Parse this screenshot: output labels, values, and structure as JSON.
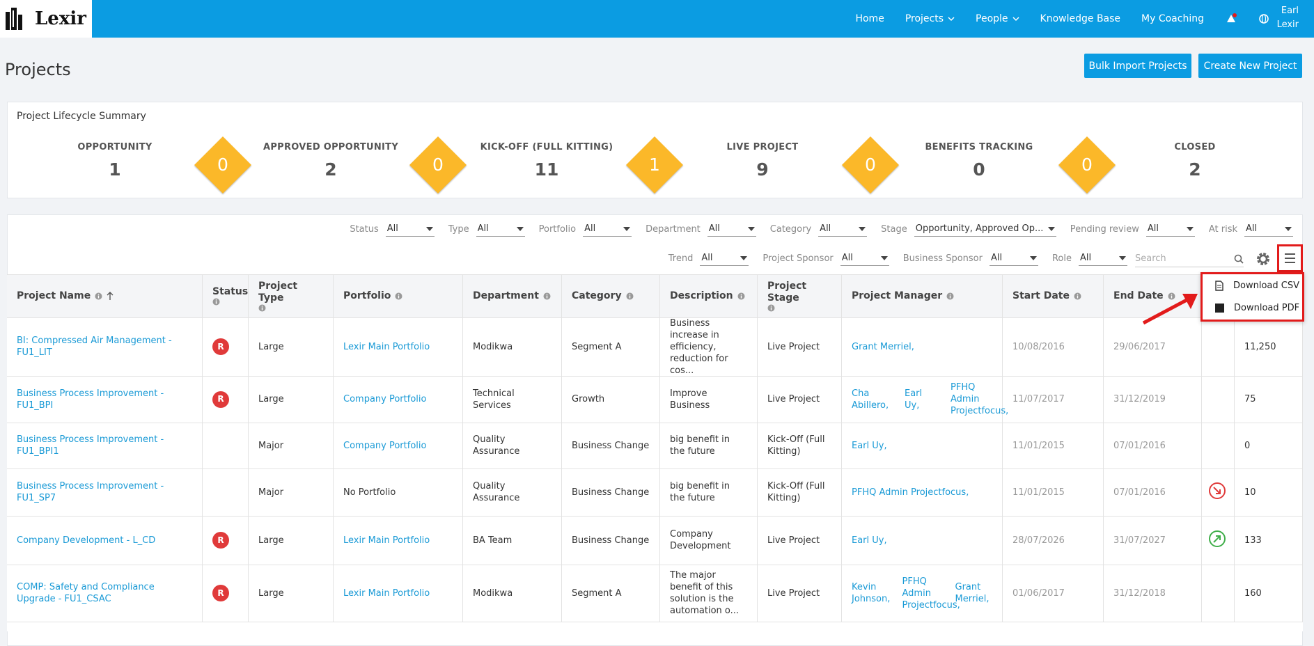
{
  "nav": {
    "logo": "Lexir",
    "links": [
      "Home",
      "Projects",
      "People",
      "Knowledge Base",
      "My Coaching"
    ],
    "user": [
      "Earl",
      "Lexir"
    ]
  },
  "header": {
    "title": "Projects",
    "buttons": [
      "Bulk Import Projects",
      "Create New Project"
    ]
  },
  "summary": {
    "title": "Project Lifecycle Summary",
    "stages": [
      {
        "label": "OPPORTUNITY",
        "count": "1"
      },
      {
        "label": "APPROVED OPPORTUNITY",
        "count": "2"
      },
      {
        "label": "KICK-OFF (FULL KITTING)",
        "count": "11"
      },
      {
        "label": "LIVE PROJECT",
        "count": "9"
      },
      {
        "label": "BENEFITS TRACKING",
        "count": "0"
      },
      {
        "label": "CLOSED",
        "count": "2"
      }
    ],
    "transitions": [
      "0",
      "0",
      "1",
      "0",
      "0"
    ]
  },
  "filters": {
    "row1": [
      {
        "label": "Status",
        "value": "All"
      },
      {
        "label": "Type",
        "value": "All"
      },
      {
        "label": "Portfolio",
        "value": "All"
      },
      {
        "label": "Department",
        "value": "All"
      },
      {
        "label": "Category",
        "value": "All"
      },
      {
        "label": "Stage",
        "value": "Opportunity, Approved Op..."
      },
      {
        "label": "Pending review",
        "value": "All"
      },
      {
        "label": "At risk",
        "value": "All"
      }
    ],
    "row2": [
      {
        "label": "Trend",
        "value": "All"
      },
      {
        "label": "Project Sponsor",
        "value": "All"
      },
      {
        "label": "Business Sponsor",
        "value": "All"
      },
      {
        "label": "Role",
        "value": "All"
      }
    ],
    "search": "Search"
  },
  "menu": [
    "Download CSV",
    "Download PDF"
  ],
  "table": {
    "columns": [
      "Project Name",
      "Status",
      "Project Type",
      "Portfolio",
      "Department",
      "Category",
      "Description",
      "Project Stage",
      "Project Manager",
      "Start Date",
      "End Date"
    ],
    "rows": [
      {
        "name": "BI: Compressed Air Management - FU1_LIT",
        "status": "R",
        "type": "Large",
        "portfolio": "Lexir Main Portfolio",
        "department": "Modikwa",
        "category": "Segment A",
        "description": "Business increase in efficiency, reduction for cos...",
        "stage": "Live Project",
        "managers": [
          "Grant Merriel,"
        ],
        "start": "10/08/2016",
        "end": "29/06/2017",
        "value": "11,250"
      },
      {
        "name": "Business Process Improvement - FU1_BPI",
        "status": "R",
        "type": "Large",
        "portfolio": "Company Portfolio",
        "department": "Technical Services",
        "category": "Growth",
        "description": "Improve Business",
        "stage": "Live Project",
        "managers": [
          "Cha Abillero,",
          "Earl Uy,",
          "PFHQ Admin Projectfocus,"
        ],
        "start": "11/07/2017",
        "end": "31/12/2019",
        "value": "75"
      },
      {
        "name": "Business Process Improvement - FU1_BPI1",
        "status": null,
        "type": "Major",
        "portfolio": "Company Portfolio",
        "department": "Quality Assurance",
        "category": "Business Change",
        "description": "big benefit in the future",
        "stage": "Kick-Off (Full Kitting)",
        "managers": [
          "Earl Uy,"
        ],
        "start": "11/01/2015",
        "end": "07/01/2016",
        "value": "0"
      },
      {
        "name": "Business Process Improvement - FU1_SP7",
        "status": null,
        "type": "Major",
        "portfolio": "No Portfolio",
        "department": "Quality Assurance",
        "category": "Business Change",
        "description": "big benefit in the future",
        "stage": "Kick-Off (Full Kitting)",
        "managers": [
          "PFHQ Admin Projectfocus,"
        ],
        "start": "11/01/2015",
        "end": "07/01/2016",
        "value": "10"
      },
      {
        "name": "Company Development - L_CD",
        "status": "R",
        "type": "Large",
        "portfolio": "Lexir Main Portfolio",
        "department": "BA Team",
        "category": "Business Change",
        "description": "Company Development",
        "stage": "Live Project",
        "managers": [
          "Earl Uy,"
        ],
        "start": "28/07/2026",
        "end": "31/07/2027",
        "value": "133"
      },
      {
        "name": "COMP: Safety and Compliance Upgrade - FU1_CSAC",
        "status": "R",
        "type": "Large",
        "portfolio": "Lexir Main Portfolio",
        "department": "Modikwa",
        "category": "Segment A",
        "description": "The major benefit of this solution is the automation o...",
        "stage": "Live Project",
        "managers": [
          "Kevin Johnson,",
          "PFHQ Admin Projectfocus,",
          "Grant Merriel,"
        ],
        "start": "01/06/2017",
        "end": "31/12/2018",
        "value": "160"
      }
    ]
  }
}
